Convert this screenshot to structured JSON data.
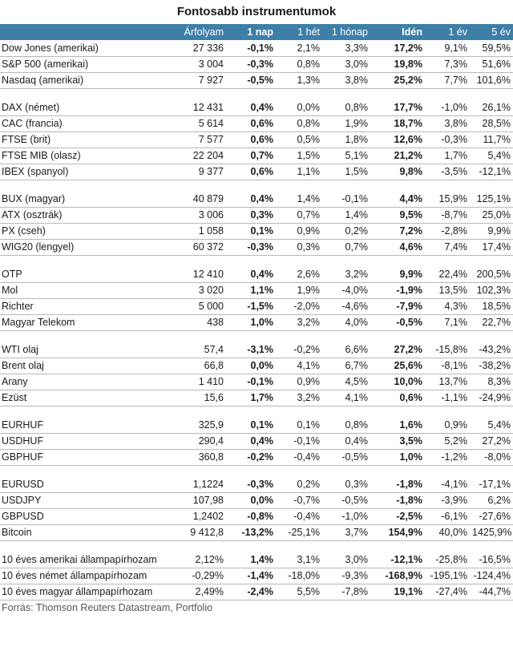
{
  "title": "Fontosabb instrumentumok",
  "headers": [
    "",
    "Árfolyam",
    "1 nap",
    "1 hét",
    "1 hónap",
    "Idén",
    "1 év",
    "5 év"
  ],
  "groups": [
    [
      [
        "Dow Jones (amerikai)",
        "27 336",
        "-0,1%",
        "2,1%",
        "3,3%",
        "17,2%",
        "9,1%",
        "59,5%"
      ],
      [
        "S&P 500 (amerikai)",
        "3 004",
        "-0,3%",
        "0,8%",
        "3,0%",
        "19,8%",
        "7,3%",
        "51,6%"
      ],
      [
        "Nasdaq (amerikai)",
        "7 927",
        "-0,5%",
        "1,3%",
        "3,8%",
        "25,2%",
        "7,7%",
        "101,6%"
      ]
    ],
    [
      [
        "DAX (német)",
        "12 431",
        "0,4%",
        "0,0%",
        "0,8%",
        "17,7%",
        "-1,0%",
        "26,1%"
      ],
      [
        "CAC (francia)",
        "5 614",
        "0,6%",
        "0,8%",
        "1,9%",
        "18,7%",
        "3,8%",
        "28,5%"
      ],
      [
        "FTSE (brit)",
        "7 577",
        "0,6%",
        "0,5%",
        "1,8%",
        "12,6%",
        "-0,3%",
        "11,7%"
      ],
      [
        "FTSE MIB (olasz)",
        "22 204",
        "0,7%",
        "1,5%",
        "5,1%",
        "21,2%",
        "1,7%",
        "5,4%"
      ],
      [
        "IBEX (spanyol)",
        "9 377",
        "0,6%",
        "1,1%",
        "1,5%",
        "9,8%",
        "-3,5%",
        "-12,1%"
      ]
    ],
    [
      [
        "BUX (magyar)",
        "40 879",
        "0,4%",
        "1,4%",
        "-0,1%",
        "4,4%",
        "15,9%",
        "125,1%"
      ],
      [
        "ATX (osztrák)",
        "3 006",
        "0,3%",
        "0,7%",
        "1,4%",
        "9,5%",
        "-8,7%",
        "25,0%"
      ],
      [
        "PX (cseh)",
        "1 058",
        "0,1%",
        "0,9%",
        "0,2%",
        "7,2%",
        "-2,8%",
        "9,9%"
      ],
      [
        "WIG20 (lengyel)",
        "60 372",
        "-0,3%",
        "0,3%",
        "0,7%",
        "4,6%",
        "7,4%",
        "17,4%"
      ]
    ],
    [
      [
        "OTP",
        "12 410",
        "0,4%",
        "2,6%",
        "3,2%",
        "9,9%",
        "22,4%",
        "200,5%"
      ],
      [
        "Mol",
        "3 020",
        "1,1%",
        "1,9%",
        "-4,0%",
        "-1,9%",
        "13,5%",
        "102,3%"
      ],
      [
        "Richter",
        "5 000",
        "-1,5%",
        "-2,0%",
        "-4,6%",
        "-7,9%",
        "4,3%",
        "18,5%"
      ],
      [
        "Magyar Telekom",
        "438",
        "1,0%",
        "3,2%",
        "4,0%",
        "-0,5%",
        "7,1%",
        "22,7%"
      ]
    ],
    [
      [
        "WTI olaj",
        "57,4",
        "-3,1%",
        "-0,2%",
        "6,6%",
        "27,2%",
        "-15,8%",
        "-43,2%"
      ],
      [
        "Brent olaj",
        "66,8",
        "0,0%",
        "4,1%",
        "6,7%",
        "25,6%",
        "-8,1%",
        "-38,2%"
      ],
      [
        "Arany",
        "1 410",
        "-0,1%",
        "0,9%",
        "4,5%",
        "10,0%",
        "13,7%",
        "8,3%"
      ],
      [
        "Ezüst",
        "15,6",
        "1,7%",
        "3,2%",
        "4,1%",
        "0,6%",
        "-1,1%",
        "-24,9%"
      ]
    ],
    [
      [
        "EURHUF",
        "325,9",
        "0,1%",
        "0,1%",
        "0,8%",
        "1,6%",
        "0,9%",
        "5,4%"
      ],
      [
        "USDHUF",
        "290,4",
        "0,4%",
        "-0,1%",
        "0,4%",
        "3,5%",
        "5,2%",
        "27,2%"
      ],
      [
        "GBPHUF",
        "360,8",
        "-0,2%",
        "-0,4%",
        "-0,5%",
        "1,0%",
        "-1,2%",
        "-8,0%"
      ]
    ],
    [
      [
        "EURUSD",
        "1,1224",
        "-0,3%",
        "0,2%",
        "0,3%",
        "-1,8%",
        "-4,1%",
        "-17,1%"
      ],
      [
        "USDJPY",
        "107,98",
        "0,0%",
        "-0,7%",
        "-0,5%",
        "-1,8%",
        "-3,9%",
        "6,2%"
      ],
      [
        "GBPUSD",
        "1,2402",
        "-0,8%",
        "-0,4%",
        "-1,0%",
        "-2,5%",
        "-6,1%",
        "-27,6%"
      ],
      [
        "Bitcoin",
        "9 412,8",
        "-13,2%",
        "-25,1%",
        "3,7%",
        "154,9%",
        "40,0%",
        "1425,9%"
      ]
    ],
    [
      [
        "10 éves amerikai állampapírhozam",
        "2,12%",
        "1,4%",
        "3,1%",
        "3,0%",
        "-12,1%",
        "-25,8%",
        "-16,5%"
      ],
      [
        "10 éves német állampapírhozam",
        "-0,29%",
        "-1,4%",
        "-18,0%",
        "-9,3%",
        "-168,9%",
        "-195,1%",
        "-124,4%"
      ],
      [
        "10 éves magyar állampapírhozam",
        "2,49%",
        "-2,4%",
        "5,5%",
        "-7,8%",
        "19,1%",
        "-27,4%",
        "-44,7%"
      ]
    ]
  ],
  "source": "Forrás: Thomson Reuters Datastream, Portfolio",
  "colors": {
    "header_bg": "#3e7fa8",
    "header_text": "#ffffff",
    "divider": "#b8b8b8"
  }
}
